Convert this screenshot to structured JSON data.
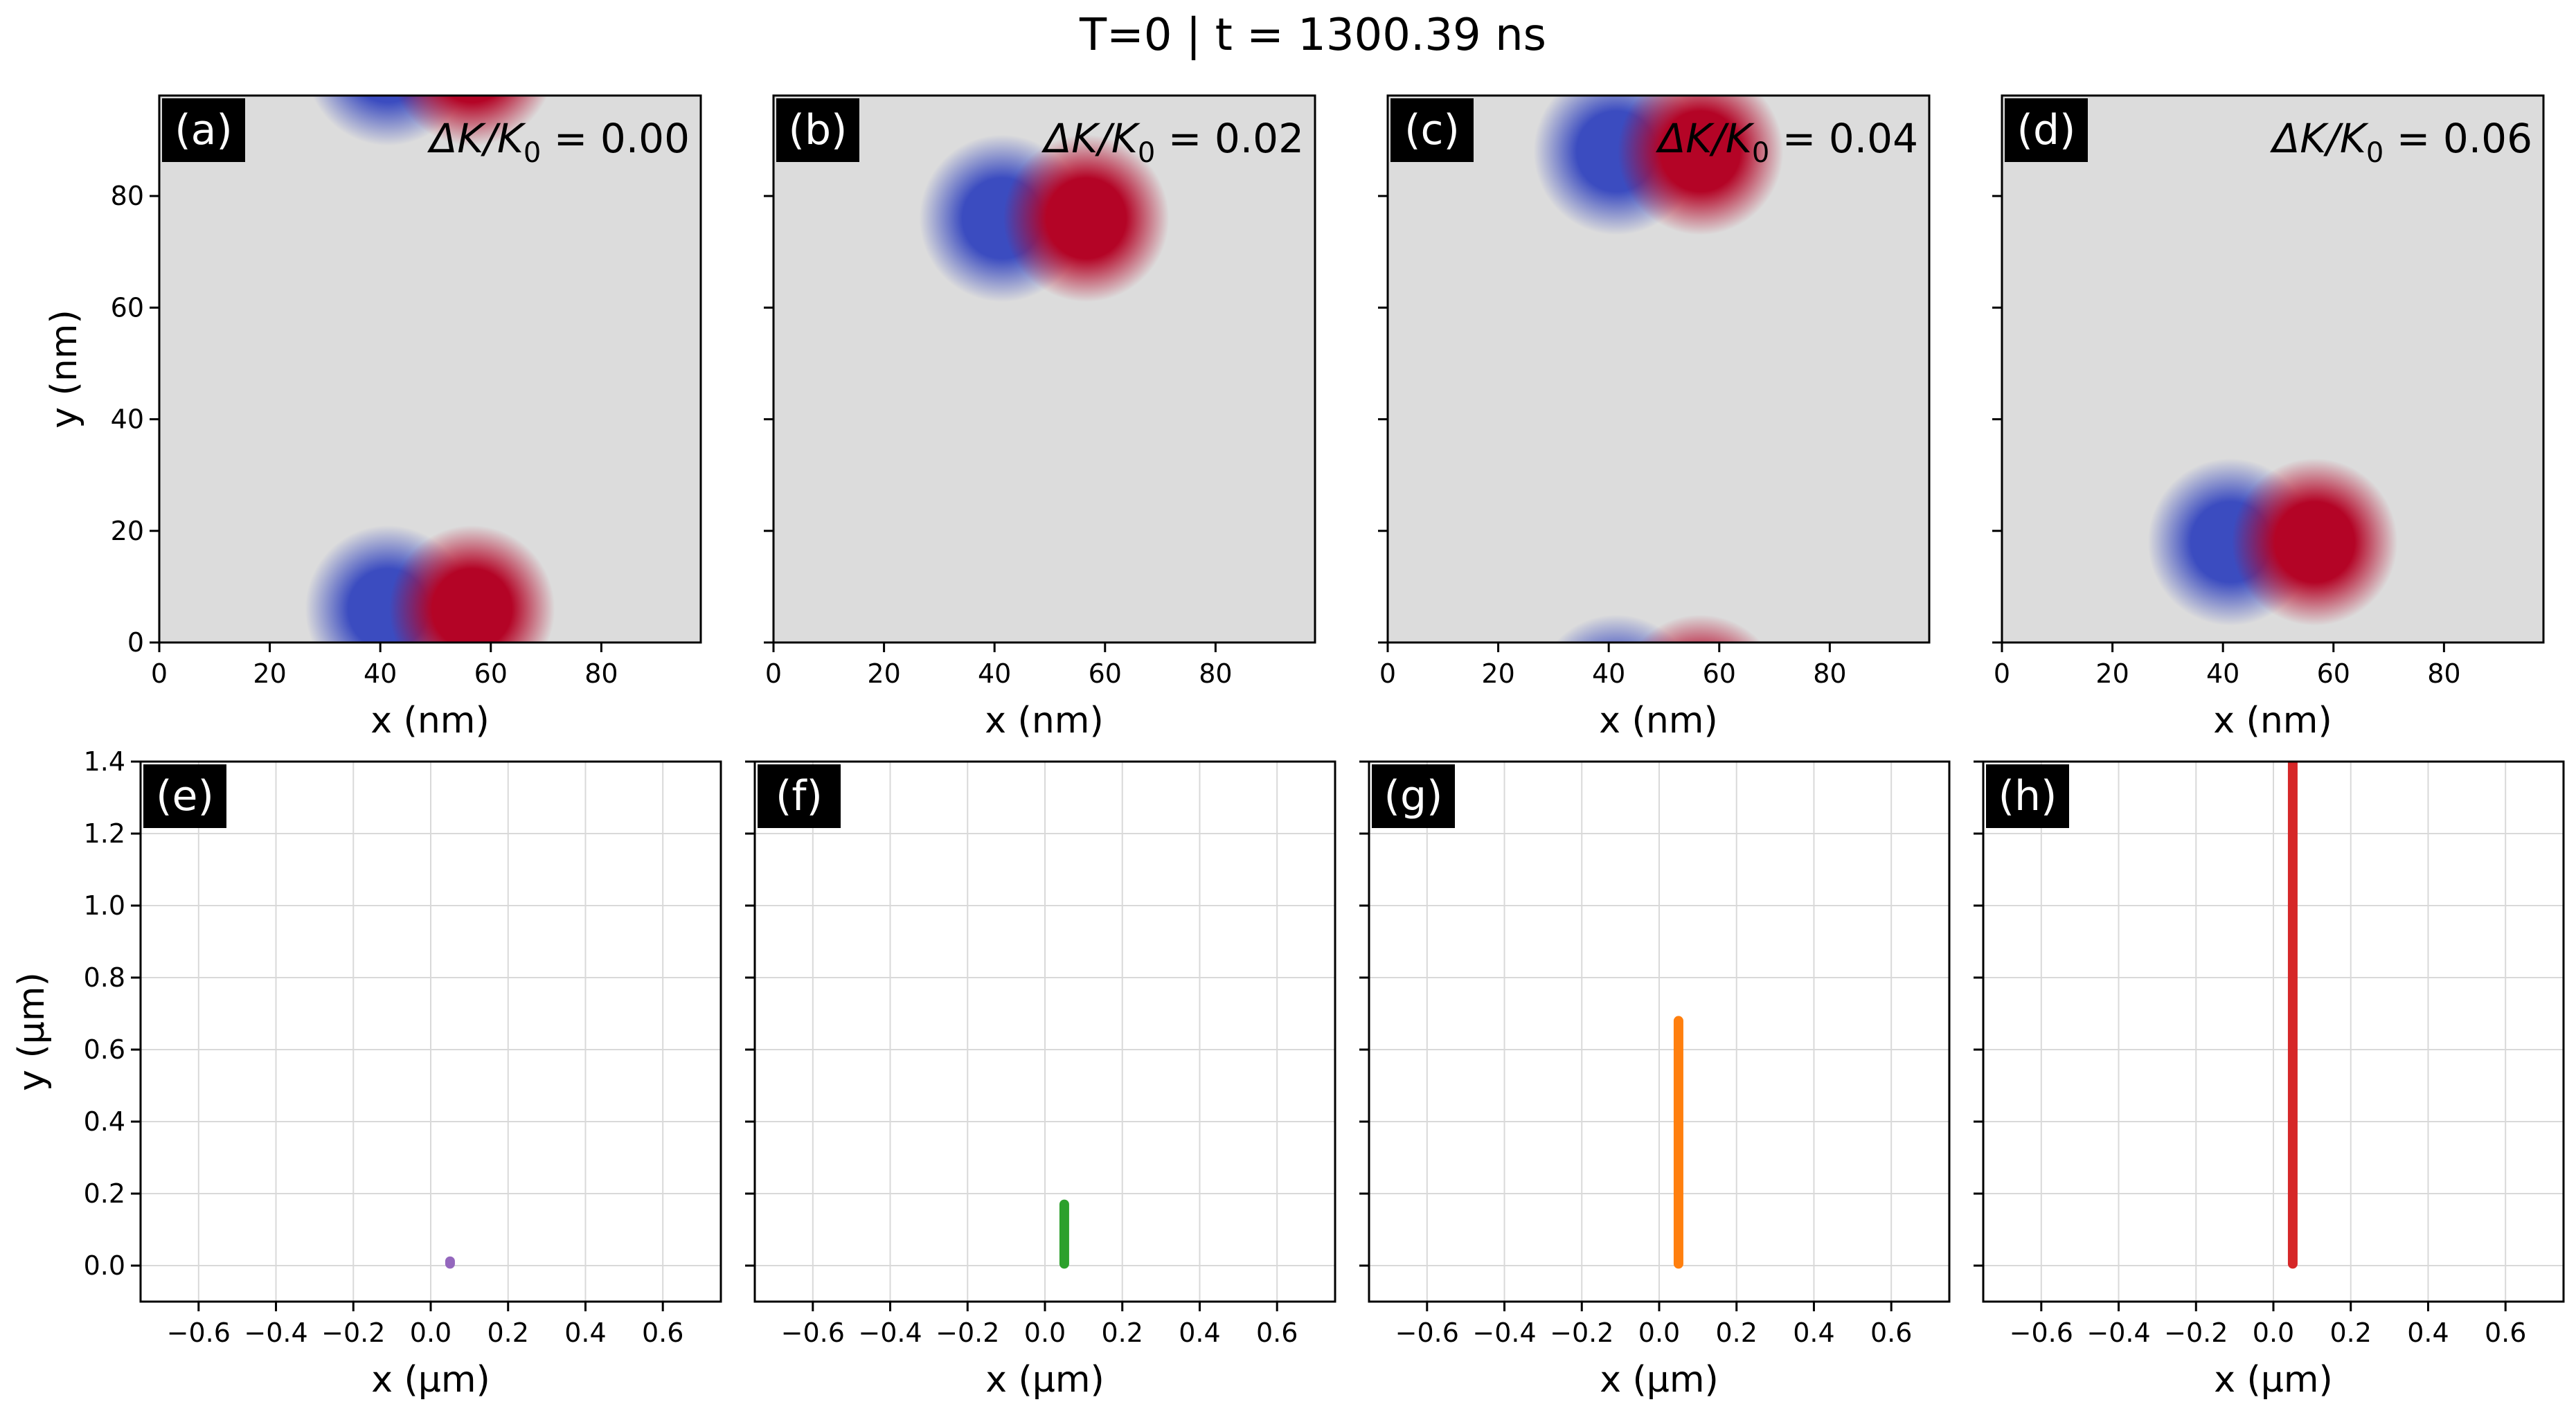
{
  "figure": {
    "suptitle": "T=0 | t = 1300.39 ns",
    "colors": {
      "background": "#dcdcdc",
      "negative": "#3b4cc0",
      "positive": "#b40426",
      "grid": "#d9d9d9",
      "axis": "#000000",
      "label_box": "#000000",
      "label_text": "#ffffff"
    }
  },
  "chart_data": [
    {
      "type": "heatmap",
      "id": "a",
      "label": "(a)",
      "param_label": "ΔK/K",
      "param_sub": "0",
      "param_value": "= 0.00",
      "xlabel": "x (nm)",
      "ylabel": "y (nm)",
      "xlim": [
        0,
        98
      ],
      "ylim": [
        0,
        98
      ],
      "xticks": [
        0,
        20,
        40,
        60,
        80
      ],
      "yticks": [
        0,
        20,
        40,
        60,
        80
      ],
      "show_yticklabels": true,
      "skyrmion_pairs": [
        {
          "center_x": 49,
          "center_y": 6,
          "strength": 1.0
        },
        {
          "center_x": 49,
          "center_y": 104,
          "strength": 1.0
        }
      ]
    },
    {
      "type": "heatmap",
      "id": "b",
      "label": "(b)",
      "param_label": "ΔK/K",
      "param_sub": "0",
      "param_value": "= 0.02",
      "xlabel": "x (nm)",
      "ylabel": "",
      "xlim": [
        0,
        98
      ],
      "ylim": [
        0,
        98
      ],
      "xticks": [
        0,
        20,
        40,
        60,
        80
      ],
      "yticks": [
        0,
        20,
        40,
        60,
        80
      ],
      "show_yticklabels": false,
      "skyrmion_pairs": [
        {
          "center_x": 49,
          "center_y": 76,
          "strength": 1.0
        }
      ]
    },
    {
      "type": "heatmap",
      "id": "c",
      "label": "(c)",
      "param_label": "ΔK/K",
      "param_sub": "0",
      "param_value": "= 0.04",
      "xlabel": "x (nm)",
      "ylabel": "",
      "xlim": [
        0,
        98
      ],
      "ylim": [
        0,
        98
      ],
      "xticks": [
        0,
        20,
        40,
        60,
        80
      ],
      "yticks": [
        0,
        20,
        40,
        60,
        80
      ],
      "show_yticklabels": false,
      "skyrmion_pairs": [
        {
          "center_x": 49,
          "center_y": 88,
          "strength": 1.0
        },
        {
          "center_x": 49,
          "center_y": -10,
          "strength": 1.0
        }
      ]
    },
    {
      "type": "heatmap",
      "id": "d",
      "label": "(d)",
      "param_label": "ΔK/K",
      "param_sub": "0",
      "param_value": "= 0.06",
      "xlabel": "x (nm)",
      "ylabel": "",
      "xlim": [
        0,
        98
      ],
      "ylim": [
        0,
        98
      ],
      "xticks": [
        0,
        20,
        40,
        60,
        80
      ],
      "yticks": [
        0,
        20,
        40,
        60,
        80
      ],
      "show_yticklabels": false,
      "skyrmion_pairs": [
        {
          "center_x": 49,
          "center_y": 18,
          "strength": 1.0
        }
      ]
    },
    {
      "type": "line",
      "id": "e",
      "label": "(e)",
      "xlabel": "x (μm)",
      "ylabel": "y (μm)",
      "xlim": [
        -0.75,
        0.75
      ],
      "ylim": [
        -0.1,
        1.4
      ],
      "xticks": [
        -0.6,
        -0.4,
        -0.2,
        0.0,
        0.2,
        0.4,
        0.6
      ],
      "yticks": [
        0.0,
        0.2,
        0.4,
        0.6,
        0.8,
        1.0,
        1.2,
        1.4
      ],
      "xticklabels": [
        "−0.6",
        "−0.4",
        "−0.2",
        "0.0",
        "0.2",
        "0.4",
        "0.6"
      ],
      "yticklabels": [
        "0.0",
        "0.2",
        "0.4",
        "0.6",
        "0.8",
        "1.0",
        "1.2",
        "1.4"
      ],
      "show_yticklabels": true,
      "series": [
        {
          "name": "trajectory",
          "color": "#9467bd",
          "x": [
            0.05,
            0.05
          ],
          "y": [
            0.005,
            0.012
          ]
        }
      ]
    },
    {
      "type": "line",
      "id": "f",
      "label": "(f)",
      "xlabel": "x (μm)",
      "ylabel": "",
      "xlim": [
        -0.75,
        0.75
      ],
      "ylim": [
        -0.1,
        1.4
      ],
      "xticks": [
        -0.6,
        -0.4,
        -0.2,
        0.0,
        0.2,
        0.4,
        0.6
      ],
      "yticks": [
        0.0,
        0.2,
        0.4,
        0.6,
        0.8,
        1.0,
        1.2,
        1.4
      ],
      "xticklabels": [
        "−0.6",
        "−0.4",
        "−0.2",
        "0.0",
        "0.2",
        "0.4",
        "0.6"
      ],
      "yticklabels": [],
      "show_yticklabels": false,
      "series": [
        {
          "name": "trajectory",
          "color": "#2ca02c",
          "x": [
            0.05,
            0.05
          ],
          "y": [
            0.005,
            0.17
          ]
        }
      ]
    },
    {
      "type": "line",
      "id": "g",
      "label": "(g)",
      "xlabel": "x (μm)",
      "ylabel": "",
      "xlim": [
        -0.75,
        0.75
      ],
      "ylim": [
        -0.1,
        1.4
      ],
      "xticks": [
        -0.6,
        -0.4,
        -0.2,
        0.0,
        0.2,
        0.4,
        0.6
      ],
      "yticks": [
        0.0,
        0.2,
        0.4,
        0.6,
        0.8,
        1.0,
        1.2,
        1.4
      ],
      "xticklabels": [
        "−0.6",
        "−0.4",
        "−0.2",
        "0.0",
        "0.2",
        "0.4",
        "0.6"
      ],
      "yticklabels": [],
      "show_yticklabels": false,
      "series": [
        {
          "name": "trajectory",
          "color": "#ff7f0e",
          "x": [
            0.05,
            0.05
          ],
          "y": [
            0.005,
            0.68
          ]
        }
      ]
    },
    {
      "type": "line",
      "id": "h",
      "label": "(h)",
      "xlabel": "x (μm)",
      "ylabel": "",
      "xlim": [
        -0.75,
        0.75
      ],
      "ylim": [
        -0.1,
        1.4
      ],
      "xticks": [
        -0.6,
        -0.4,
        -0.2,
        0.0,
        0.2,
        0.4,
        0.6
      ],
      "yticks": [
        0.0,
        0.2,
        0.4,
        0.6,
        0.8,
        1.0,
        1.2,
        1.4
      ],
      "xticklabels": [
        "−0.6",
        "−0.4",
        "−0.2",
        "0.0",
        "0.2",
        "0.4",
        "0.6"
      ],
      "yticklabels": [],
      "show_yticklabels": false,
      "series": [
        {
          "name": "trajectory",
          "color": "#d62728",
          "x": [
            0.05,
            0.05
          ],
          "y": [
            0.005,
            1.4
          ]
        }
      ]
    }
  ]
}
